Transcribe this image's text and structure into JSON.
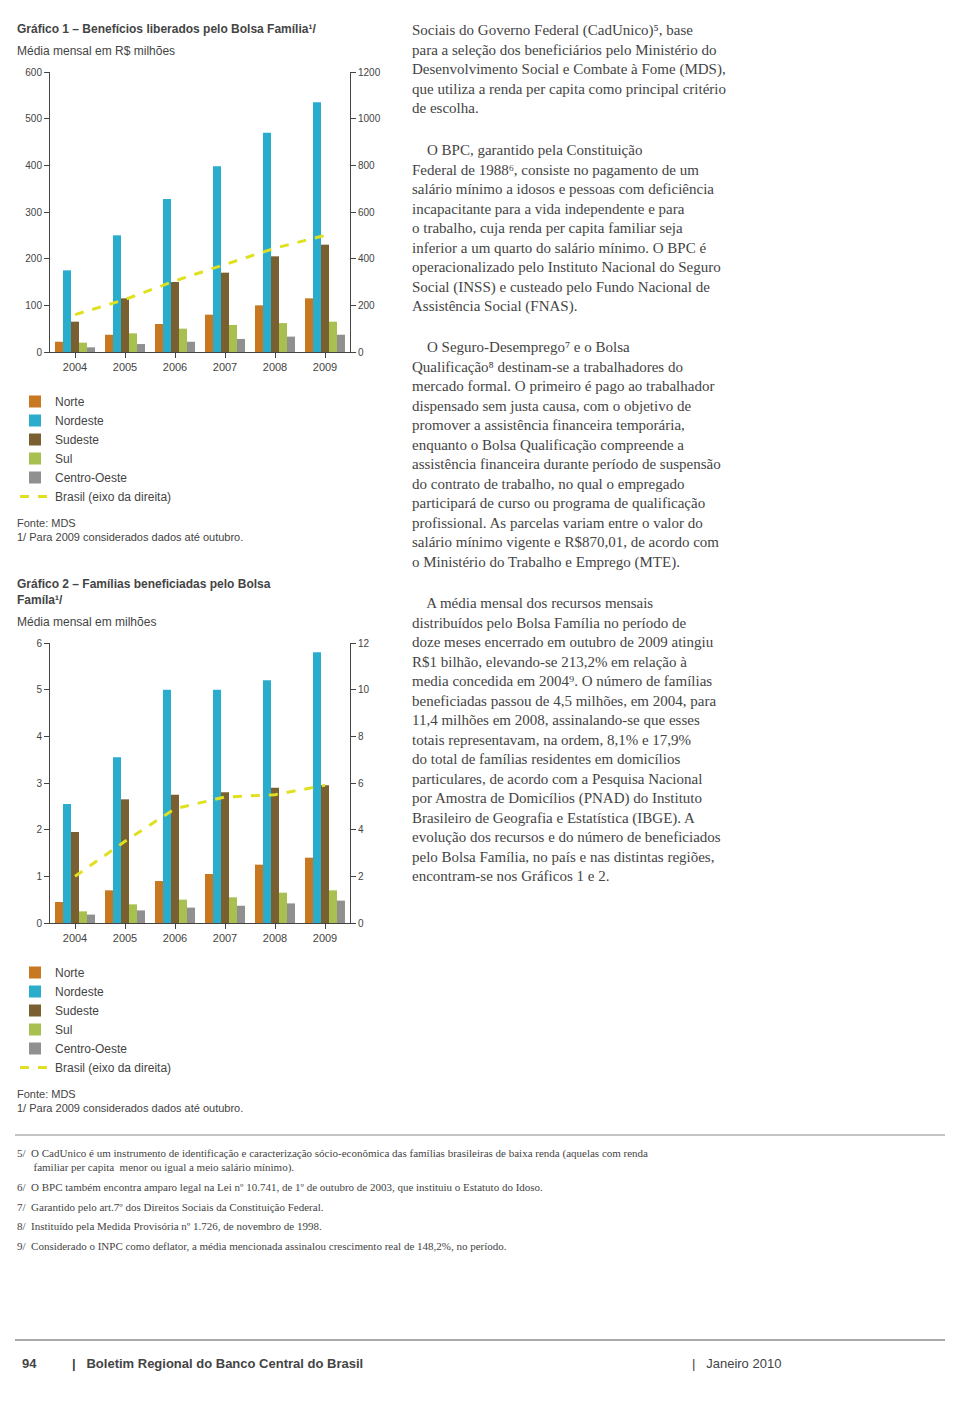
{
  "chart_data": [
    {
      "type": "bar",
      "title": "Gráfico 1 – Benefícios liberados pelo Bolsa Família¹/",
      "subtitle": "Média mensal em R$ milhões",
      "categories": [
        "2004",
        "2005",
        "2006",
        "2007",
        "2008",
        "2009"
      ],
      "series": [
        {
          "name": "Norte",
          "color": "#c87820",
          "values": [
            22,
            37,
            60,
            80,
            100,
            115
          ]
        },
        {
          "name": "Nordeste",
          "color": "#2aadcc",
          "values": [
            175,
            250,
            328,
            398,
            470,
            535
          ]
        },
        {
          "name": "Sudeste",
          "color": "#7a6030",
          "values": [
            65,
            115,
            150,
            170,
            205,
            230
          ]
        },
        {
          "name": "Sul",
          "color": "#a8c050",
          "values": [
            20,
            40,
            50,
            58,
            62,
            65
          ]
        },
        {
          "name": "Centro-Oeste",
          "color": "#909090",
          "values": [
            10,
            17,
            22,
            28,
            33,
            37
          ]
        },
        {
          "name": "Brasil (eixo da direita)",
          "type": "line",
          "axis": "y2",
          "line_style": "dashed",
          "color": "#e0e020",
          "values": [
            160,
            225,
            305,
            375,
            445,
            500
          ]
        }
      ],
      "ylim": [
        0,
        600
      ],
      "yticks": [
        0,
        100,
        200,
        300,
        400,
        500,
        600
      ],
      "y2lim": [
        0,
        1200
      ],
      "y2ticks": [
        0,
        200,
        400,
        600,
        800,
        1000,
        1200
      ],
      "grid": false,
      "annotations": [
        "Fonte: MDS\n1/ Para 2009 considerados dados até outubro."
      ]
    },
    {
      "type": "bar",
      "title": "Gráfico 2 – Famílias beneficiadas pelo Bolsa\nFamíla¹/",
      "subtitle": "Média mensal em milhões",
      "categories": [
        "2004",
        "2005",
        "2006",
        "2007",
        "2008",
        "2009"
      ],
      "series": [
        {
          "name": "Norte",
          "color": "#c87820",
          "values": [
            0.45,
            0.7,
            0.9,
            1.05,
            1.25,
            1.4
          ]
        },
        {
          "name": "Nordeste",
          "color": "#2aadcc",
          "values": [
            2.55,
            3.55,
            5.0,
            5.0,
            5.2,
            5.8
          ]
        },
        {
          "name": "Sudeste",
          "color": "#7a6030",
          "values": [
            1.95,
            2.65,
            2.75,
            2.8,
            2.9,
            2.95
          ]
        },
        {
          "name": "Sul",
          "color": "#a8c050",
          "values": [
            0.25,
            0.4,
            0.5,
            0.55,
            0.65,
            0.7
          ]
        },
        {
          "name": "Centro-Oeste",
          "color": "#909090",
          "values": [
            0.18,
            0.27,
            0.33,
            0.37,
            0.42,
            0.48
          ]
        },
        {
          "name": "Brasil (eixo da direita)",
          "type": "line",
          "axis": "y2",
          "line_style": "dashed",
          "color": "#e0e020",
          "values": [
            2.0,
            3.5,
            4.9,
            5.4,
            5.5,
            5.9
          ]
        }
      ],
      "ylim": [
        0,
        6
      ],
      "yticks": [
        0,
        1,
        2,
        3,
        4,
        5,
        6
      ],
      "y2lim": [
        0,
        12
      ],
      "y2ticks": [
        0,
        2,
        4,
        6,
        8,
        10,
        12
      ],
      "grid": false,
      "annotations": [
        "Fonte: MDS\n1/ Para 2009 considerados dados até outubro."
      ]
    }
  ],
  "paragraphs": [
    "Sociais do Governo Federal (CadUnico)⁵, base\npara a seleção dos beneficiários pelo Ministério do\nDesenvolvimento Social e Combate à Fome (MDS),\nque utiliza a renda per capita como principal critério\nde escolha.",
    "    O BPC, garantido pela Constituição\nFederal de 1988⁶, consiste no pagamento de um\nsalário mínimo a idosos e pessoas com deficiência\nincapacitante para a vida independente e para\no trabalho, cuja renda per capita familiar seja\ninferior a um quarto do salário mínimo. O BPC é\noperacionalizado pelo Instituto Nacional do Seguro\nSocial (INSS) e custeado pelo Fundo Nacional de\nAssistência Social (FNAS).",
    "    O Seguro-Desemprego⁷ e o Bolsa\nQualificação⁸ destinam-se a trabalhadores do\nmercado formal. O primeiro é pago ao trabalhador\ndispensado sem justa causa, com o objetivo de\npromover a assistência financeira temporária,\nenquanto o Bolsa Qualificação compreende a\nassistência financeira durante período de suspensão\ndo contrato de trabalho, no qual o empregado\nparticipará de curso ou programa de qualificação\nprofissional. As parcelas variam entre o valor do\nsalário mínimo vigente e R$870,01, de acordo com\no Ministério do Trabalho e Emprego (MTE).",
    "    A média mensal dos recursos mensais\ndistribuídos pelo Bolsa Família no período de\ndoze meses encerrado em outubro de 2009 atingiu\nR$1 bilhão, elevando-se 213,2% em relação à\nmedia concedida em 2004⁹. O número de famílias\nbeneficiadas passou de 4,5 milhões, em 2004, para\n11,4 milhões em 2008, assinalando-se que esses\ntotais representavam, na ordem, 8,1% e 17,9%\ndo total de famílias residentes em domicílios\nparticulares, de acordo com a Pesquisa Nacional\npor Amostra de Domicílios (PNAD) do Instituto\nBrasileiro de Geografia e Estatística (IBGE). A\nevolução dos recursos e do número de beneficiados\npelo Bolsa Família, no país e nas distintas regiões,\nencontram-se nos Gráficos 1 e 2."
  ],
  "footnotes": [
    "5/  O CadUnico é um instrumento de identificação e caracterização sócio-econômica das famílias brasileiras de baixa renda (aquelas com renda\n      familiar per capita  menor ou igual a meio salário mínimo).",
    "6/  O BPC também encontra amparo legal na Lei nº 10.741, de 1º de outubro de 2003, que instituiu o Estatuto do Idoso.",
    "7/  Garantido pelo art.7º dos Direitos Sociais da Constituição Federal.",
    "8/  Instituído pela Medida Provisória nº 1.726, de novembro de 1998.",
    "9/  Considerado o INPC como deflator, a média mencionada assinalou crescimento real de 148,2%, no período."
  ],
  "footer": [
    "94",
    "|   Boletim Regional do Banco Central do Brasil",
    "|   Janeiro 2010"
  ]
}
